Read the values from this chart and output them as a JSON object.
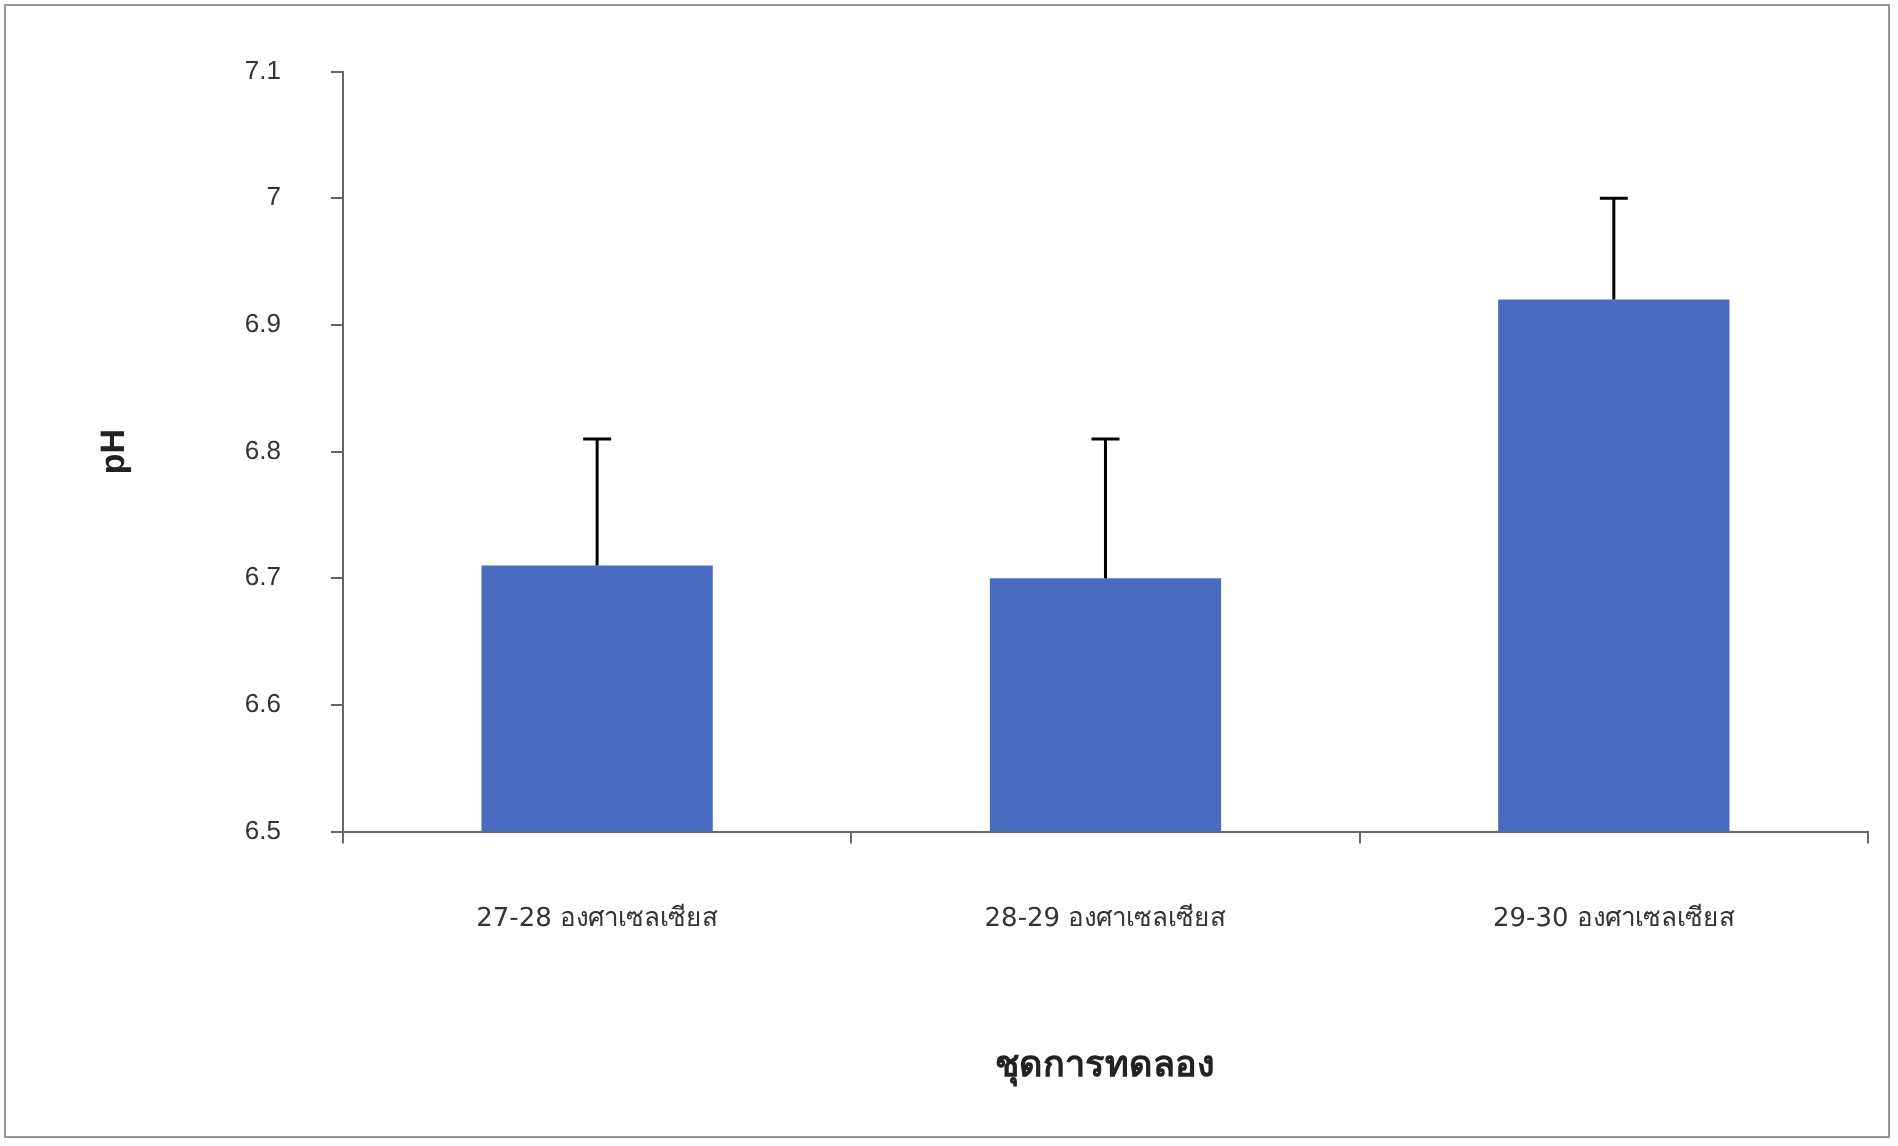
{
  "chart_data": {
    "type": "bar",
    "xlabel": "ชุดการทดลอง",
    "ylabel": "pH",
    "categories": [
      "27-28 องศาเซลเซียส",
      "28-29 องศาเซลเซียส",
      "29-30 องศาเซลเซียส"
    ],
    "values": [
      6.71,
      6.7,
      6.92
    ],
    "color": "#4a6cc0",
    "errors": [
      [
        6.71,
        6.81
      ],
      [
        6.7,
        6.81
      ],
      [
        6.92,
        7.0
      ]
    ],
    "ylim": [
      6.5,
      7.1
    ],
    "yticks": [
      6.5,
      6.6,
      6.7,
      6.8,
      6.9,
      7,
      7.1
    ],
    "grid": false,
    "legend": false
  }
}
